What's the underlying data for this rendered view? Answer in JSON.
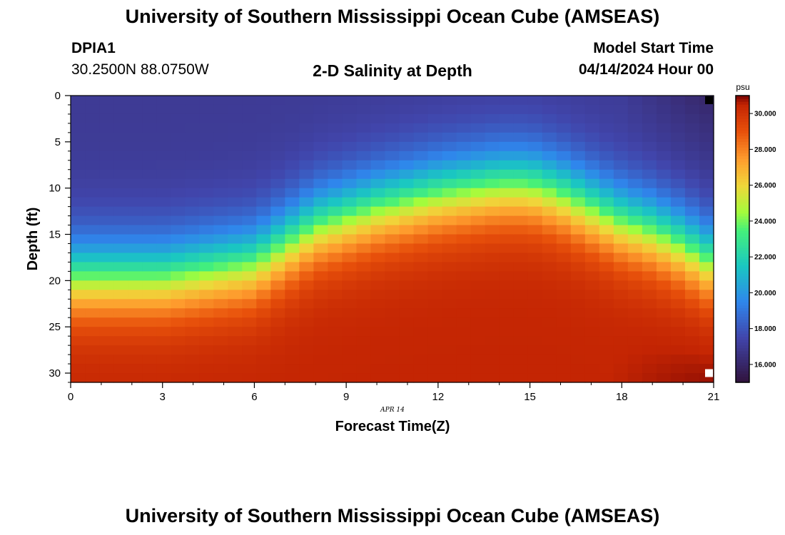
{
  "header": {
    "title": "University of Southern Mississippi Ocean Cube (AMSEAS)",
    "station_id": "DPIA1",
    "station_coords": "30.2500N  88.0750W",
    "plot_title": "2-D Salinity at Depth",
    "model_start_label": "Model Start Time",
    "model_start_value": "04/14/2024 Hour 00"
  },
  "footer": {
    "title": "University of Southern Mississippi Ocean Cube (AMSEAS)"
  },
  "chart_data": {
    "type": "heatmap",
    "title": "2-D Salinity at Depth",
    "xlabel": "Forecast Time(Z)",
    "ylabel": "Depth (ft)",
    "x_date_label": "APR 14",
    "xlim": [
      0,
      21
    ],
    "ylim": [
      0,
      31
    ],
    "x_ticks": [
      "0",
      "3",
      "6",
      "9",
      "12",
      "15",
      "18",
      "21"
    ],
    "y_ticks": [
      "0",
      "5",
      "10",
      "15",
      "20",
      "25",
      "30"
    ],
    "value_range": [
      15,
      31
    ],
    "colorbar": {
      "unit": "psu",
      "ticks": [
        "16.000",
        "18.000",
        "20.000",
        "22.000",
        "24.000",
        "26.000",
        "28.000",
        "30.000"
      ]
    },
    "colormap": [
      [
        15,
        "#30123b"
      ],
      [
        17.5,
        "#4145ab"
      ],
      [
        19.5,
        "#2f86ec"
      ],
      [
        21.5,
        "#1ac7c2"
      ],
      [
        23.5,
        "#45f07a"
      ],
      [
        24.5,
        "#a4fc3c"
      ],
      [
        26,
        "#f0d63a"
      ],
      [
        27.5,
        "#fe9b2d"
      ],
      [
        29,
        "#e8510b"
      ],
      [
        30.5,
        "#c42503"
      ],
      [
        31,
        "#7a0403"
      ]
    ],
    "grid_x_cells": 45,
    "grid_y_cells": 31,
    "halocline_depth_ft_at_time_hr": [
      [
        0,
        19.5
      ],
      [
        3,
        19.5
      ],
      [
        6,
        18
      ],
      [
        8,
        14
      ],
      [
        10,
        12
      ],
      [
        12,
        10.5
      ],
      [
        14,
        9.5
      ],
      [
        15,
        9.5
      ],
      [
        16,
        10.5
      ],
      [
        17,
        12
      ],
      [
        18,
        13.5
      ],
      [
        19,
        14.5
      ],
      [
        20,
        16
      ],
      [
        21,
        18
      ]
    ],
    "surface_salinity_psu": 17,
    "deep_salinity_psu": 30.5,
    "missing_cells": [
      {
        "time_hr": 21,
        "depth_ft": 0.5,
        "value": "land"
      },
      {
        "time_hr": 21,
        "depth_ft": 30,
        "value": "no-data"
      }
    ]
  }
}
